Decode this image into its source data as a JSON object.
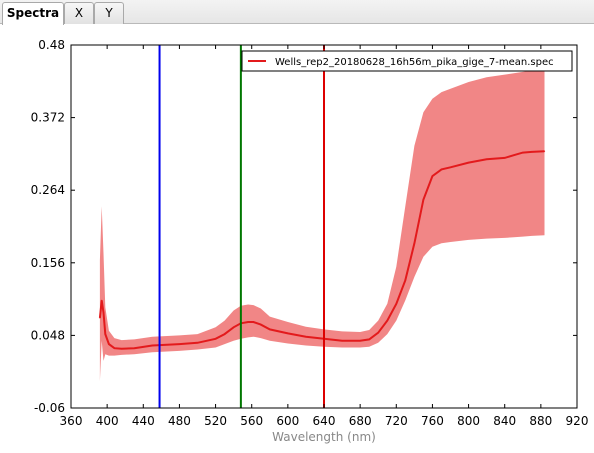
{
  "tabs": [
    {
      "label": "Spectra",
      "active": true
    },
    {
      "label": "X",
      "active": false
    },
    {
      "label": "Y",
      "active": false
    }
  ],
  "chart_data": {
    "type": "line",
    "title": "",
    "xlabel": "Wavelength (nm)",
    "ylabel": "",
    "xlim": [
      360,
      920
    ],
    "ylim": [
      -0.06,
      0.48
    ],
    "xticks": [
      "360",
      "400",
      "440",
      "480",
      "520",
      "560",
      "600",
      "640",
      "680",
      "720",
      "760",
      "800",
      "840",
      "880",
      "920"
    ],
    "yticks": [
      "-0.06",
      "0.048",
      "0.156",
      "0.264",
      "0.372",
      "0.48"
    ],
    "legend": {
      "position": "top-right",
      "entries": [
        "Wells_rep2_20180628_16h56m_pika_gige_7-mean.spec"
      ]
    },
    "series": [
      {
        "name": "Wells_rep2_20180628_16h56m_pika_gige_7-mean.spec",
        "color": "#e31a1c",
        "band_color": "#f08080",
        "x": [
          392,
          394,
          396,
          398,
          402,
          408,
          416,
          430,
          450,
          480,
          500,
          520,
          530,
          540,
          548,
          556,
          562,
          570,
          580,
          600,
          620,
          640,
          660,
          680,
          690,
          700,
          710,
          720,
          730,
          740,
          750,
          760,
          770,
          780,
          800,
          820,
          840,
          850,
          860,
          870,
          884
        ],
        "mean": [
          0.074,
          0.1,
          0.082,
          0.05,
          0.035,
          0.029,
          0.028,
          0.029,
          0.033,
          0.035,
          0.037,
          0.043,
          0.05,
          0.06,
          0.066,
          0.068,
          0.068,
          0.064,
          0.057,
          0.051,
          0.046,
          0.043,
          0.04,
          0.04,
          0.042,
          0.052,
          0.07,
          0.095,
          0.13,
          0.185,
          0.25,
          0.285,
          0.295,
          0.298,
          0.305,
          0.31,
          0.312,
          0.316,
          0.32,
          0.321,
          0.322
        ],
        "lower": [
          -0.02,
          0.04,
          0.01,
          0.02,
          0.018,
          0.018,
          0.019,
          0.02,
          0.023,
          0.025,
          0.027,
          0.03,
          0.035,
          0.04,
          0.043,
          0.045,
          0.046,
          0.044,
          0.04,
          0.036,
          0.033,
          0.031,
          0.03,
          0.03,
          0.031,
          0.037,
          0.05,
          0.07,
          0.1,
          0.135,
          0.165,
          0.18,
          0.185,
          0.187,
          0.19,
          0.192,
          0.193,
          0.194,
          0.195,
          0.196,
          0.197
        ],
        "upper": [
          0.16,
          0.24,
          0.17,
          0.09,
          0.055,
          0.044,
          0.041,
          0.042,
          0.046,
          0.048,
          0.05,
          0.06,
          0.07,
          0.085,
          0.092,
          0.094,
          0.093,
          0.088,
          0.076,
          0.068,
          0.061,
          0.057,
          0.054,
          0.053,
          0.056,
          0.07,
          0.095,
          0.15,
          0.24,
          0.33,
          0.38,
          0.4,
          0.41,
          0.415,
          0.425,
          0.432,
          0.436,
          0.438,
          0.44,
          0.442,
          0.445
        ]
      }
    ],
    "vertical_lines": [
      {
        "x": 458,
        "color": "#0000ee"
      },
      {
        "x": 548,
        "color": "#007700"
      },
      {
        "x": 640,
        "color": "#dd0000"
      }
    ]
  }
}
